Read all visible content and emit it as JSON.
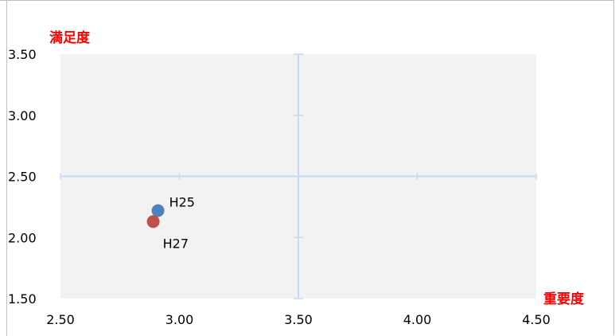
{
  "chart_data": {
    "type": "scatter",
    "title": "",
    "xlabel": "重要度",
    "ylabel": "満足度",
    "xlim": [
      2.5,
      4.5
    ],
    "ylim": [
      1.5,
      3.5
    ],
    "x_ticks": [
      "2.50",
      "3.00",
      "3.50",
      "4.00",
      "4.50"
    ],
    "y_ticks": [
      "1.50",
      "2.00",
      "2.50",
      "3.00",
      "3.50"
    ],
    "quadrant_lines": {
      "x": 3.5,
      "y": 2.5
    },
    "plot_background": "#f2f2f2",
    "crosshair_color": "#c5d9f1",
    "axis_title_color": "#ff0000",
    "grid": false,
    "legend": "none",
    "series": [
      {
        "name": "H25",
        "x": [
          2.91
        ],
        "y": [
          2.22
        ],
        "color": "#4f81bd"
      },
      {
        "name": "H27",
        "x": [
          2.89
        ],
        "y": [
          2.13
        ],
        "color": "#c0504d"
      }
    ]
  }
}
